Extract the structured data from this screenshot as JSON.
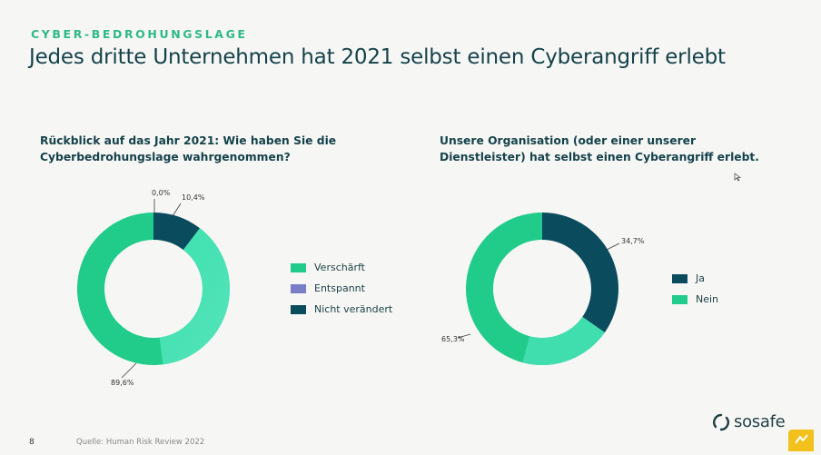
{
  "header": {
    "kicker": "CYBER-BEDROHUNGSLAGE",
    "title": "Jedes dritte Unternehmen hat 2021 selbst einen Cyberangriff erlebt"
  },
  "chart_data": [
    {
      "type": "pie",
      "title_lines": [
        "Rückblick auf das Jahr 2021: Wie haben Sie die",
        "Cyberbedrohungslage wahrgenommen?"
      ],
      "slices": [
        {
          "label": "Verschärft",
          "value": 89.6,
          "display": "89,6%",
          "color": "#21cc8a"
        },
        {
          "label": "Entspannt",
          "value": 0.0,
          "display": "0,0%",
          "color": "#7a7ec9"
        },
        {
          "label": "Nicht verändert",
          "value": 10.4,
          "display": "10,4%",
          "color": "#0b4b5e"
        }
      ],
      "legend_position": "right"
    },
    {
      "type": "pie",
      "title_lines": [
        "Unsere Organisation (oder einer unserer",
        "Dienstleister) hat selbst einen Cyberangriff erlebt."
      ],
      "slices": [
        {
          "label": "Ja",
          "value": 34.7,
          "display": "34,7%",
          "color": "#0b4b5e"
        },
        {
          "label": "Nein",
          "value": 65.3,
          "display": "65,3%",
          "color": "#21cc8a"
        }
      ],
      "legend_position": "right"
    }
  ],
  "footer": {
    "page_number": "8",
    "source": "Quelle: Human Risk Review 2022",
    "brand": "sosafe"
  }
}
